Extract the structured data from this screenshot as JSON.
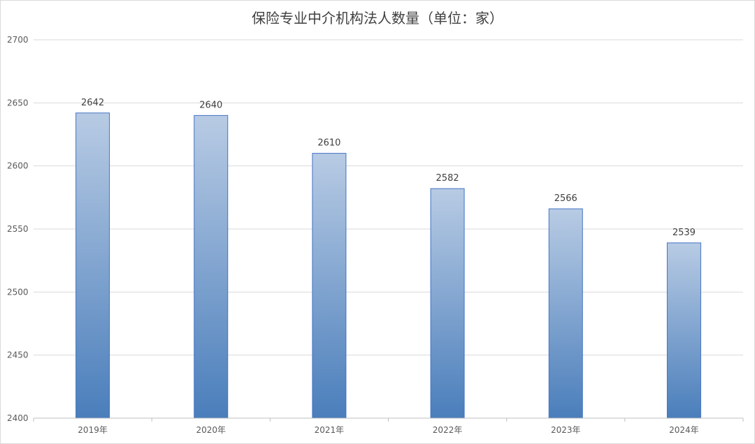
{
  "chart_data": {
    "type": "bar",
    "title": "保险专业中介机构法人数量（单位：家）",
    "categories": [
      "2019年",
      "2020年",
      "2021年",
      "2022年",
      "2023年",
      "2024年"
    ],
    "values": [
      2642,
      2640,
      2610,
      2582,
      2566,
      2539
    ],
    "data_labels": [
      "2642",
      "2640",
      "2610",
      "2582",
      "2566",
      "2539"
    ],
    "y_ticks": [
      "2400",
      "2450",
      "2500",
      "2550",
      "2600",
      "2650",
      "2700"
    ],
    "ylim": [
      2400,
      2700
    ],
    "xlabel": "",
    "ylabel": "",
    "grid": true,
    "legend": "none",
    "colors": {
      "bar_top": "#b8cbe4",
      "bar_bottom": "#4a7ebb",
      "bar_border": "#4472c4",
      "grid": "#d9d9d9",
      "axis": "#bfbfbf"
    }
  }
}
